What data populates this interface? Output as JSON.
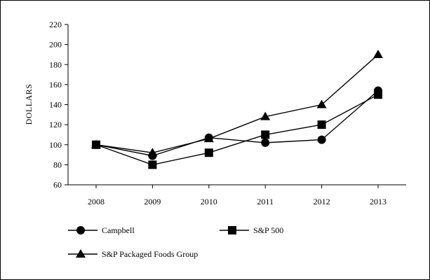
{
  "chart_data": {
    "type": "line",
    "title": "",
    "xlabel": "",
    "ylabel": "DOLLARS",
    "categories": [
      "2008",
      "2009",
      "2010",
      "2011",
      "2012",
      "2013"
    ],
    "ylim": [
      60,
      220
    ],
    "yticks": [
      60,
      80,
      100,
      120,
      140,
      160,
      180,
      200,
      220
    ],
    "grid": false,
    "legend_position": "bottom",
    "series": [
      {
        "name": "Campbell",
        "marker": "circle",
        "values": [
          100,
          89,
          107,
          102,
          105,
          154
        ]
      },
      {
        "name": "S&P 500",
        "marker": "square",
        "values": [
          100,
          80,
          92,
          110,
          120,
          150
        ]
      },
      {
        "name": "S&P Packaged Foods Group",
        "marker": "triangle",
        "values": [
          100,
          92,
          106,
          128,
          140,
          190
        ]
      }
    ]
  },
  "colors": {
    "line": "#000000",
    "marker": "#000000",
    "background": "#ffffff"
  }
}
